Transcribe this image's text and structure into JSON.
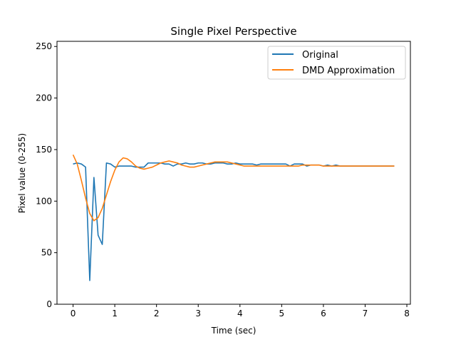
{
  "chart_data": {
    "type": "line",
    "title": "Single Pixel Perspective",
    "xlabel": "Time (sec)",
    "ylabel": "Pixel value (0-255)",
    "xlim": [
      -0.385,
      8.085
    ],
    "ylim": [
      0,
      255
    ],
    "xticks": [
      0,
      1,
      2,
      3,
      4,
      5,
      6,
      7,
      8
    ],
    "yticks": [
      0,
      50,
      100,
      150,
      200,
      250
    ],
    "grid": false,
    "legend_position": "top-right",
    "series": [
      {
        "name": "Original",
        "color": "#1f77b4",
        "x": [
          0,
          0.1,
          0.2,
          0.3,
          0.4,
          0.5,
          0.6,
          0.7,
          0.8,
          0.9,
          1.0,
          1.1,
          1.2,
          1.3,
          1.4,
          1.5,
          1.6,
          1.7,
          1.8,
          1.9,
          2.0,
          2.1,
          2.2,
          2.3,
          2.4,
          2.5,
          2.6,
          2.7,
          2.8,
          2.9,
          3.0,
          3.1,
          3.2,
          3.3,
          3.4,
          3.5,
          3.6,
          3.7,
          3.8,
          3.9,
          4.0,
          4.1,
          4.2,
          4.3,
          4.4,
          4.5,
          4.6,
          4.7,
          4.8,
          4.9,
          5.0,
          5.1,
          5.2,
          5.3,
          5.4,
          5.5,
          5.6,
          5.7,
          5.8,
          5.9,
          6.0,
          6.1,
          6.2,
          6.3,
          6.4,
          6.5,
          6.6,
          6.7,
          6.8,
          6.9,
          7.0,
          7.1,
          7.2,
          7.3,
          7.4,
          7.5,
          7.6,
          7.7
        ],
        "values": [
          136,
          137,
          136,
          133,
          23,
          123,
          67,
          58,
          137,
          136,
          133,
          134,
          134,
          134,
          134,
          133,
          133,
          133,
          137,
          137,
          137,
          137,
          136,
          136,
          134,
          136,
          136,
          137,
          136,
          136,
          137,
          137,
          136,
          136,
          137,
          137,
          137,
          136,
          136,
          137,
          136,
          136,
          136,
          136,
          135,
          136,
          136,
          136,
          136,
          136,
          136,
          136,
          134,
          136,
          136,
          136,
          134,
          135,
          135,
          135,
          134,
          135,
          134,
          135,
          134,
          134,
          134,
          134,
          134,
          134,
          134,
          134,
          134,
          134,
          134,
          134,
          134,
          134
        ]
      },
      {
        "name": "DMD Approximation",
        "color": "#ff7f0e",
        "x": [
          0,
          0.1,
          0.2,
          0.3,
          0.4,
          0.5,
          0.6,
          0.7,
          0.8,
          0.9,
          1.0,
          1.1,
          1.2,
          1.3,
          1.4,
          1.5,
          1.6,
          1.7,
          1.8,
          1.9,
          2.0,
          2.1,
          2.2,
          2.3,
          2.4,
          2.5,
          2.6,
          2.7,
          2.8,
          2.9,
          3.0,
          3.1,
          3.2,
          3.3,
          3.4,
          3.5,
          3.6,
          3.7,
          3.8,
          3.9,
          4.0,
          4.1,
          4.2,
          4.3,
          4.4,
          4.5,
          4.6,
          4.7,
          4.8,
          4.9,
          5.0,
          5.1,
          5.2,
          5.3,
          5.4,
          5.5,
          5.6,
          5.7,
          5.8,
          5.9,
          6.0,
          6.1,
          6.2,
          6.3,
          6.4,
          6.5,
          6.6,
          6.7,
          6.8,
          6.9,
          7.0,
          7.1,
          7.2,
          7.3,
          7.4,
          7.5,
          7.6,
          7.7
        ],
        "values": [
          145,
          136,
          120,
          103,
          88,
          81,
          84,
          93,
          106,
          119,
          130,
          138,
          142,
          141,
          138,
          134,
          132,
          131,
          132,
          133,
          135,
          137,
          138,
          139,
          138,
          137,
          135,
          134,
          133,
          133,
          134,
          135,
          136,
          137,
          138,
          138,
          138,
          138,
          137,
          136,
          135,
          134,
          134,
          134,
          134,
          134,
          134,
          134,
          134,
          134,
          134,
          134,
          134,
          134,
          134,
          135,
          135,
          135,
          135,
          135,
          134,
          134,
          134,
          134,
          134,
          134,
          134,
          134,
          134,
          134,
          134,
          134,
          134,
          134,
          134,
          134,
          134,
          134
        ]
      }
    ]
  }
}
